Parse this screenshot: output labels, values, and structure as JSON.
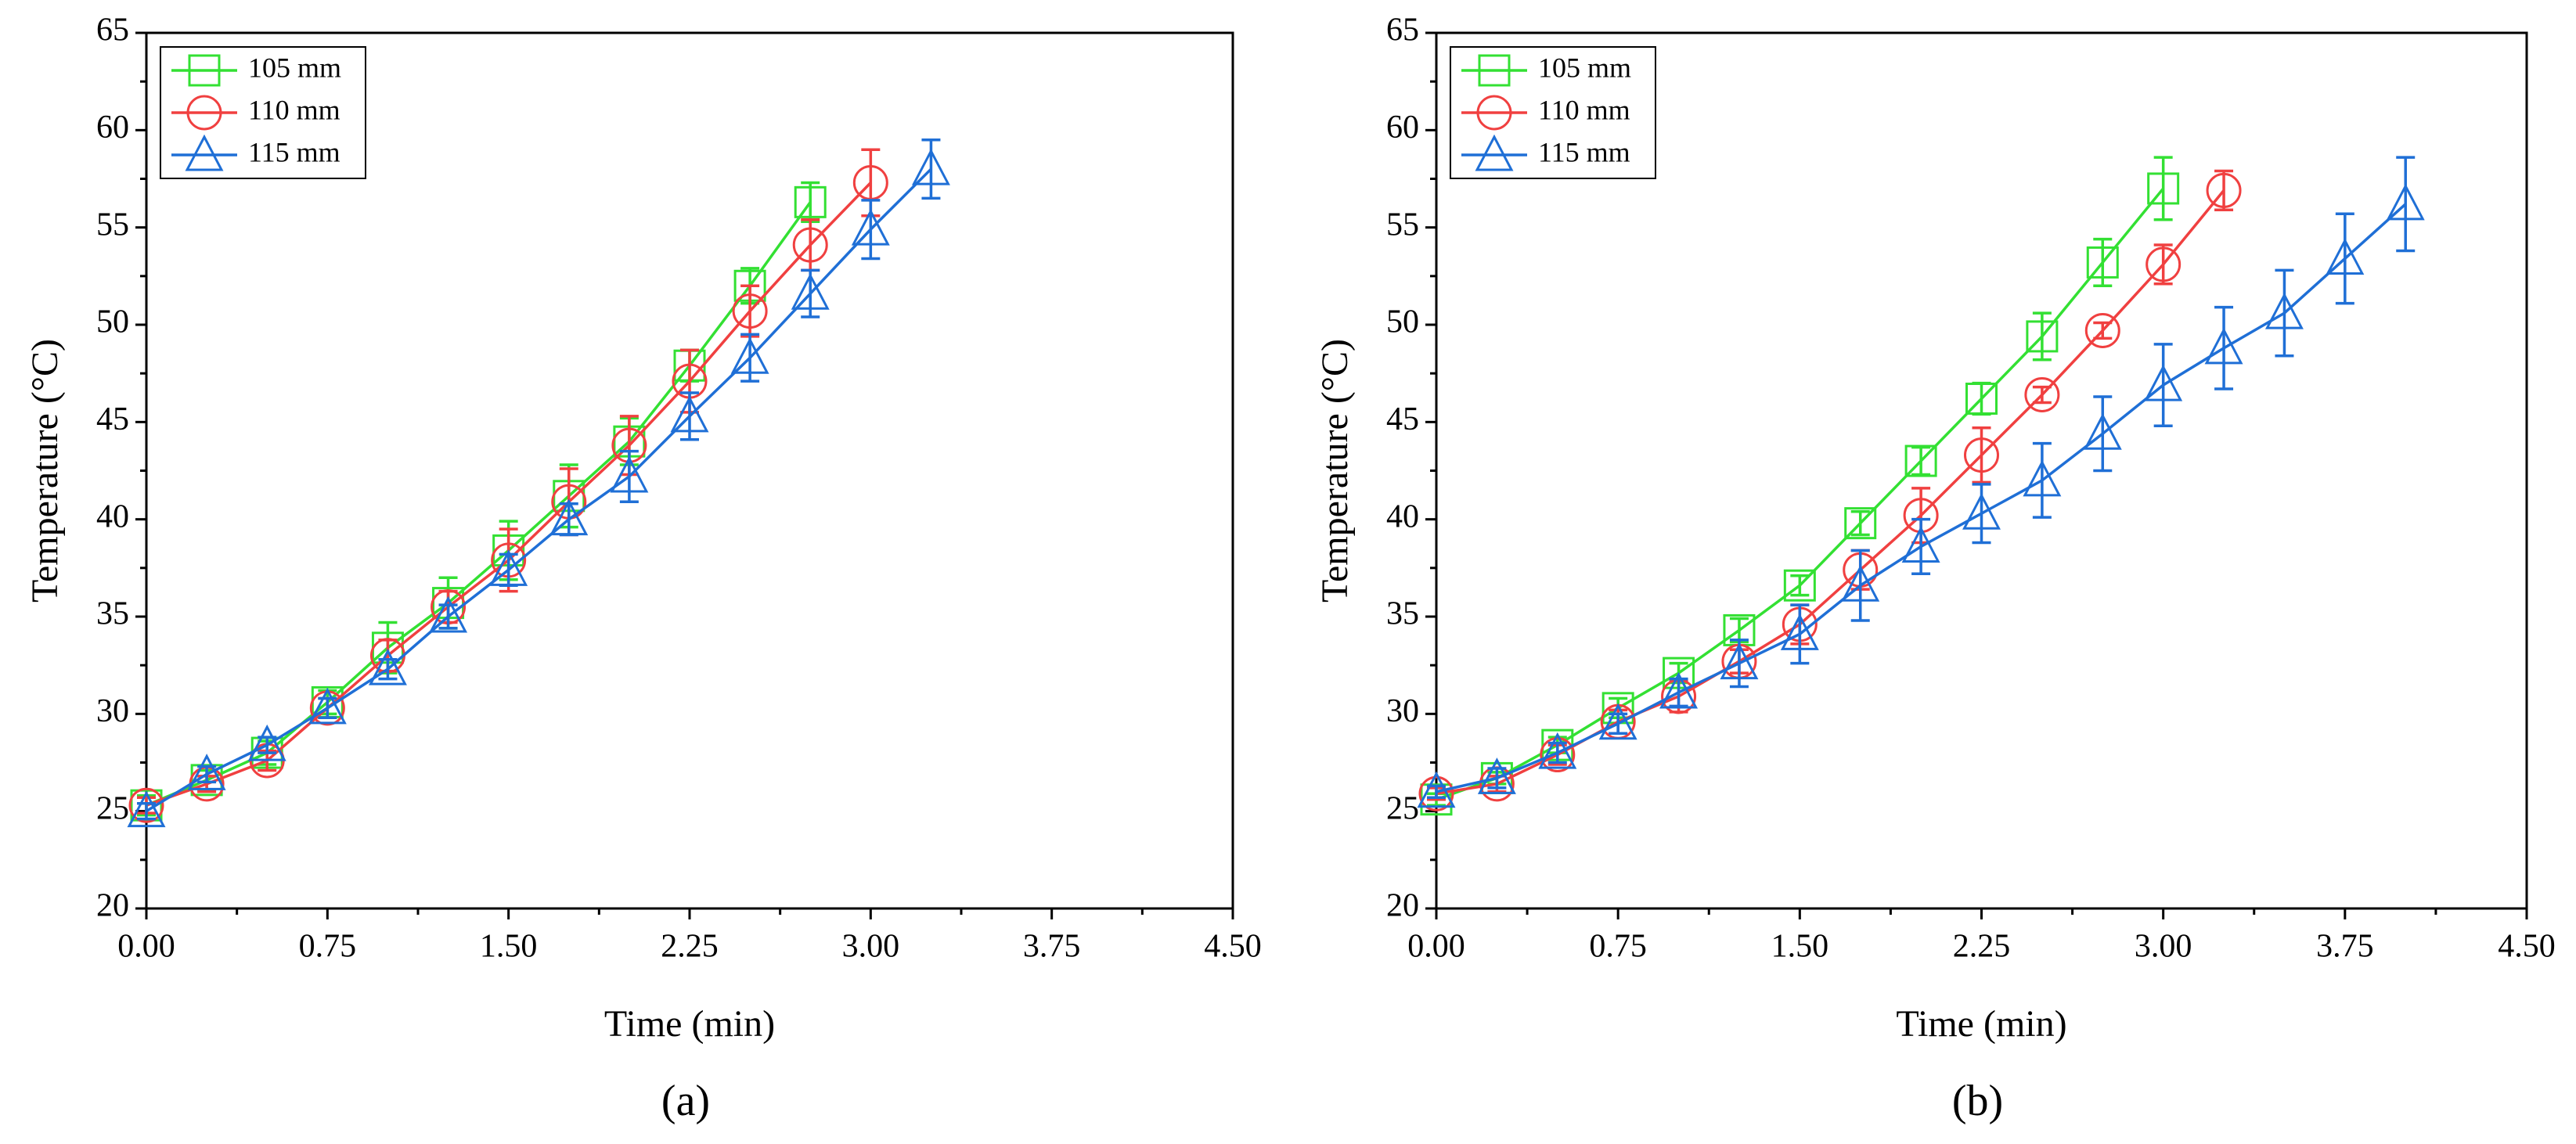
{
  "chart_data": [
    {
      "type": "line",
      "caption": "(a)",
      "xlabel": "Time (min)",
      "ylabel": "Temperature (°C)",
      "xlim": [
        0,
        4.5
      ],
      "ylim": [
        20,
        65
      ],
      "legend": "upper left",
      "xticks": [
        {
          "value": 0,
          "label": "0.00"
        },
        {
          "value": 0.75,
          "label": "0.75"
        },
        {
          "value": 1.5,
          "label": "1.50"
        },
        {
          "value": 2.25,
          "label": "2.25"
        },
        {
          "value": 3,
          "label": "3.00"
        },
        {
          "value": 3.75,
          "label": "3.75"
        },
        {
          "value": 4.5,
          "label": "4.50"
        }
      ],
      "yticks": [
        20,
        25,
        30,
        35,
        40,
        45,
        50,
        55,
        60,
        65
      ],
      "series": [
        {
          "name": "105 mm",
          "color": "#33e033",
          "marker": "square",
          "x": [
            0,
            0.25,
            0.5,
            0.75,
            1,
            1.25,
            1.5,
            1.75,
            2,
            2.25,
            2.5,
            2.75
          ],
          "values": [
            25.3,
            26.6,
            28.0,
            30.6,
            33.4,
            35.7,
            38.4,
            41.2,
            44.0,
            47.9,
            52.0,
            56.3
          ],
          "errors": [
            0.5,
            0.5,
            0.6,
            0.6,
            1.3,
            1.3,
            1.5,
            1.6,
            1.2,
            0.8,
            0.9,
            1.0
          ]
        },
        {
          "name": "110 mm",
          "color": "#f04040",
          "marker": "circle",
          "x": [
            0,
            0.25,
            0.5,
            0.75,
            1,
            1.25,
            1.5,
            1.75,
            2,
            2.25,
            2.5,
            2.75,
            3
          ],
          "values": [
            25.3,
            26.4,
            27.6,
            30.3,
            33.0,
            35.5,
            37.9,
            40.9,
            43.8,
            47.1,
            50.7,
            54.1,
            57.3
          ],
          "errors": [
            0.4,
            0.4,
            0.5,
            0.5,
            0.8,
            0.8,
            1.6,
            1.7,
            1.5,
            1.6,
            1.3,
            1.3,
            1.7
          ]
        },
        {
          "name": "115 mm",
          "color": "#1f6fd6",
          "marker": "triangle",
          "x": [
            0,
            0.25,
            0.5,
            0.75,
            1,
            1.25,
            1.5,
            1.75,
            2,
            2.25,
            2.5,
            2.75,
            3,
            3.25
          ],
          "values": [
            25.0,
            26.9,
            28.4,
            30.3,
            32.3,
            35.0,
            37.4,
            40.0,
            42.2,
            45.3,
            48.3,
            51.6,
            54.9,
            58.0
          ],
          "errors": [
            0.4,
            0.4,
            0.4,
            0.5,
            0.5,
            0.6,
            0.8,
            0.8,
            1.3,
            1.2,
            1.2,
            1.2,
            1.5,
            1.5
          ]
        }
      ]
    },
    {
      "type": "line",
      "caption": "(b)",
      "xlabel": "Time (min)",
      "ylabel": "Temperature (°C)",
      "xlim": [
        0,
        4.5
      ],
      "ylim": [
        20,
        65
      ],
      "legend": "upper left",
      "xticks": [
        {
          "value": 0,
          "label": "0.00"
        },
        {
          "value": 0.75,
          "label": "0.75"
        },
        {
          "value": 1.5,
          "label": "1.50"
        },
        {
          "value": 2.25,
          "label": "2.25"
        },
        {
          "value": 3,
          "label": "3.00"
        },
        {
          "value": 3.75,
          "label": "3.75"
        },
        {
          "value": 4.5,
          "label": "4.50"
        }
      ],
      "yticks": [
        20,
        25,
        30,
        35,
        40,
        45,
        50,
        55,
        60,
        65
      ],
      "series": [
        {
          "name": "105 mm",
          "color": "#33e033",
          "marker": "square",
          "x": [
            0,
            0.25,
            0.5,
            0.75,
            1,
            1.25,
            1.5,
            1.75,
            2,
            2.25,
            2.5,
            2.75,
            3
          ],
          "values": [
            25.6,
            26.7,
            28.4,
            30.3,
            32.1,
            34.3,
            36.6,
            39.8,
            43.0,
            46.2,
            49.4,
            53.2,
            57.0
          ],
          "errors": [
            0.3,
            0.3,
            0.4,
            0.5,
            0.5,
            0.6,
            0.5,
            0.6,
            0.7,
            0.8,
            1.2,
            1.2,
            1.6
          ]
        },
        {
          "name": "110 mm",
          "color": "#f04040",
          "marker": "circle",
          "x": [
            0,
            0.25,
            0.5,
            0.75,
            1,
            1.25,
            1.5,
            1.75,
            2,
            2.25,
            2.5,
            2.75,
            3,
            3.25
          ],
          "values": [
            25.9,
            26.4,
            27.9,
            29.6,
            30.9,
            32.7,
            34.6,
            37.4,
            40.2,
            43.3,
            46.4,
            49.7,
            53.1,
            56.9
          ],
          "errors": [
            0.3,
            0.4,
            0.5,
            0.6,
            0.8,
            0.6,
            1.0,
            1.0,
            1.4,
            1.4,
            0.4,
            0.4,
            1.0,
            1.0
          ]
        },
        {
          "name": "115 mm",
          "color": "#1f6fd6",
          "marker": "triangle",
          "x": [
            0,
            0.25,
            0.5,
            0.75,
            1,
            1.25,
            1.5,
            1.75,
            2,
            2.25,
            2.5,
            2.75,
            3,
            3.25,
            3.5,
            3.75,
            4
          ],
          "values": [
            26.0,
            26.7,
            28.0,
            29.5,
            31.1,
            32.6,
            34.1,
            36.6,
            38.6,
            40.3,
            42.0,
            44.4,
            46.9,
            48.8,
            50.6,
            53.4,
            56.2
          ],
          "errors": [
            0.3,
            0.5,
            0.5,
            0.5,
            0.7,
            1.2,
            1.5,
            1.8,
            1.4,
            1.5,
            1.9,
            1.9,
            2.1,
            2.1,
            2.2,
            2.3,
            2.4
          ]
        }
      ]
    }
  ]
}
